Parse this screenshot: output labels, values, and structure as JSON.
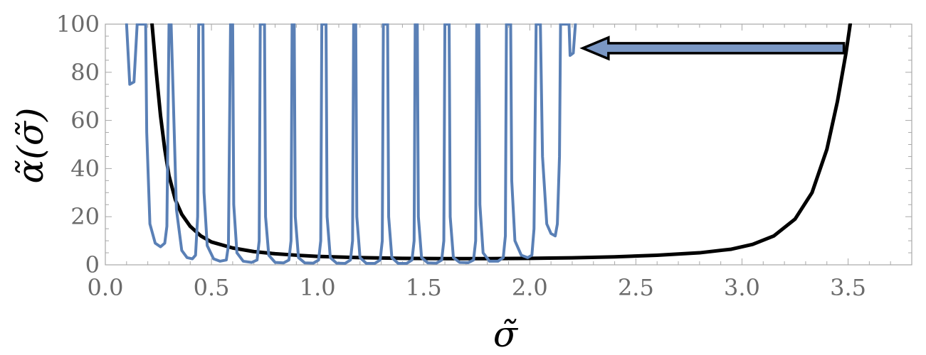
{
  "chart_data": {
    "type": "line",
    "title": "",
    "xlabel": "σ̃",
    "ylabel": "α̃(σ̃)",
    "xlim": [
      0,
      3.8
    ],
    "ylim": [
      0,
      100
    ],
    "x_ticks": [
      "0.0",
      "0.5",
      "1.0",
      "1.5",
      "2.0",
      "2.5",
      "3.0",
      "3.5"
    ],
    "x_tick_values": [
      0.0,
      0.5,
      1.0,
      1.5,
      2.0,
      2.5,
      3.0,
      3.5
    ],
    "y_ticks": [
      "0",
      "20",
      "40",
      "60",
      "80",
      "100"
    ],
    "y_tick_values": [
      0,
      20,
      40,
      60,
      80,
      100
    ],
    "grid": false,
    "series": [
      {
        "style": "black-smooth",
        "color": "#000000",
        "points": [
          [
            0.22,
            100
          ],
          [
            0.24,
            80
          ],
          [
            0.26,
            62
          ],
          [
            0.28,
            48
          ],
          [
            0.3,
            37
          ],
          [
            0.33,
            27
          ],
          [
            0.36,
            21
          ],
          [
            0.4,
            16
          ],
          [
            0.45,
            12
          ],
          [
            0.5,
            9.5
          ],
          [
            0.6,
            7
          ],
          [
            0.7,
            5.5
          ],
          [
            0.8,
            4.6
          ],
          [
            0.9,
            4.0
          ],
          [
            1.0,
            3.5
          ],
          [
            1.2,
            3.0
          ],
          [
            1.4,
            2.7
          ],
          [
            1.6,
            2.6
          ],
          [
            1.8,
            2.6
          ],
          [
            2.0,
            2.7
          ],
          [
            2.2,
            2.9
          ],
          [
            2.4,
            3.3
          ],
          [
            2.6,
            4.0
          ],
          [
            2.8,
            5.0
          ],
          [
            2.95,
            6.5
          ],
          [
            3.05,
            8.5
          ],
          [
            3.15,
            12
          ],
          [
            3.25,
            19
          ],
          [
            3.33,
            30
          ],
          [
            3.4,
            48
          ],
          [
            3.45,
            68
          ],
          [
            3.49,
            88
          ],
          [
            3.51,
            100
          ]
        ]
      },
      {
        "style": "blue-oscillating",
        "color": "#5a80b6",
        "points": [
          [
            0.1,
            100
          ],
          [
            0.115,
            75
          ],
          [
            0.135,
            76
          ],
          [
            0.15,
            100
          ],
          [
            0.19,
            100
          ],
          [
            0.195,
            55
          ],
          [
            0.21,
            17
          ],
          [
            0.235,
            9
          ],
          [
            0.26,
            7.5
          ],
          [
            0.28,
            9
          ],
          [
            0.29,
            16
          ],
          [
            0.3,
            100
          ],
          [
            0.31,
            100
          ],
          [
            0.315,
            85
          ],
          [
            0.335,
            23
          ],
          [
            0.36,
            6
          ],
          [
            0.385,
            3
          ],
          [
            0.41,
            2.5
          ],
          [
            0.425,
            4
          ],
          [
            0.435,
            20
          ],
          [
            0.44,
            100
          ],
          [
            0.46,
            100
          ],
          [
            0.465,
            30
          ],
          [
            0.48,
            8
          ],
          [
            0.51,
            2.5
          ],
          [
            0.54,
            1.5
          ],
          [
            0.57,
            2
          ],
          [
            0.58,
            8
          ],
          [
            0.59,
            100
          ],
          [
            0.6,
            100
          ],
          [
            0.605,
            25
          ],
          [
            0.62,
            5
          ],
          [
            0.65,
            1.5
          ],
          [
            0.69,
            1
          ],
          [
            0.715,
            2
          ],
          [
            0.725,
            10
          ],
          [
            0.73,
            100
          ],
          [
            0.75,
            100
          ],
          [
            0.755,
            20
          ],
          [
            0.77,
            4
          ],
          [
            0.8,
            1
          ],
          [
            0.84,
            0.8
          ],
          [
            0.865,
            2
          ],
          [
            0.875,
            10
          ],
          [
            0.88,
            100
          ],
          [
            0.89,
            100
          ],
          [
            0.895,
            20
          ],
          [
            0.91,
            3
          ],
          [
            0.94,
            0.8
          ],
          [
            0.98,
            0.7
          ],
          [
            1.005,
            2
          ],
          [
            1.015,
            10
          ],
          [
            1.02,
            100
          ],
          [
            1.04,
            100
          ],
          [
            1.045,
            20
          ],
          [
            1.06,
            3
          ],
          [
            1.09,
            0.7
          ],
          [
            1.13,
            0.6
          ],
          [
            1.155,
            2
          ],
          [
            1.165,
            10
          ],
          [
            1.17,
            100
          ],
          [
            1.18,
            100
          ],
          [
            1.185,
            20
          ],
          [
            1.2,
            3
          ],
          [
            1.23,
            0.6
          ],
          [
            1.27,
            0.6
          ],
          [
            1.295,
            2
          ],
          [
            1.305,
            10
          ],
          [
            1.31,
            100
          ],
          [
            1.33,
            100
          ],
          [
            1.335,
            20
          ],
          [
            1.35,
            3
          ],
          [
            1.38,
            0.6
          ],
          [
            1.42,
            0.6
          ],
          [
            1.445,
            2
          ],
          [
            1.455,
            10
          ],
          [
            1.46,
            100
          ],
          [
            1.47,
            100
          ],
          [
            1.475,
            20
          ],
          [
            1.49,
            3
          ],
          [
            1.52,
            0.8
          ],
          [
            1.56,
            0.7
          ],
          [
            1.585,
            2
          ],
          [
            1.595,
            10
          ],
          [
            1.6,
            100
          ],
          [
            1.62,
            100
          ],
          [
            1.625,
            20
          ],
          [
            1.64,
            3
          ],
          [
            1.67,
            1
          ],
          [
            1.71,
            0.9
          ],
          [
            1.735,
            2
          ],
          [
            1.745,
            10
          ],
          [
            1.75,
            100
          ],
          [
            1.76,
            100
          ],
          [
            1.765,
            25
          ],
          [
            1.78,
            5
          ],
          [
            1.81,
            1.5
          ],
          [
            1.85,
            1.5
          ],
          [
            1.875,
            3
          ],
          [
            1.885,
            12
          ],
          [
            1.89,
            100
          ],
          [
            1.91,
            100
          ],
          [
            1.915,
            35
          ],
          [
            1.93,
            10
          ],
          [
            1.96,
            4
          ],
          [
            1.99,
            3
          ],
          [
            2.01,
            4
          ],
          [
            2.02,
            15
          ],
          [
            2.03,
            100
          ],
          [
            2.05,
            100
          ],
          [
            2.06,
            45
          ],
          [
            2.08,
            17
          ],
          [
            2.1,
            13
          ],
          [
            2.12,
            12
          ],
          [
            2.13,
            17
          ],
          [
            2.14,
            45
          ],
          [
            2.145,
            100
          ],
          [
            2.185,
            100
          ],
          [
            2.19,
            87
          ],
          [
            2.205,
            88
          ],
          [
            2.215,
            100
          ]
        ]
      }
    ],
    "annotations": [
      {
        "type": "arrow",
        "from": [
          3.48,
          90
        ],
        "to": [
          2.25,
          90
        ],
        "fill": "#7a97c4",
        "stroke": "#000000"
      }
    ]
  }
}
